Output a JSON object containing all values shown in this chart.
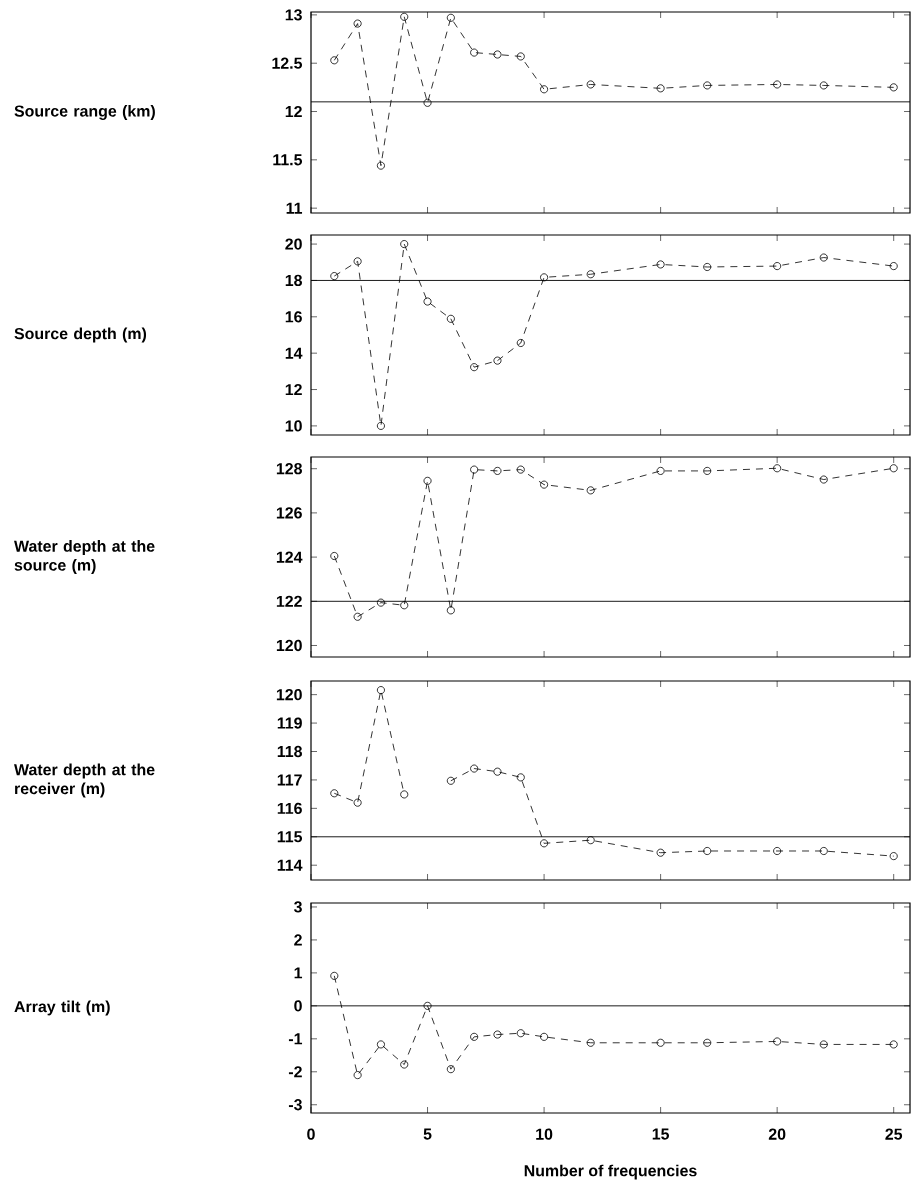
{
  "chart_data": [
    {
      "type": "line",
      "ylabel": "Source range (km)",
      "x": [
        1,
        2,
        3,
        4,
        5,
        6,
        7,
        8,
        9,
        10,
        12,
        15,
        17,
        20,
        22,
        25
      ],
      "series": [
        {
          "color": "#000000",
          "values": [
            12.53,
            12.91,
            11.44,
            12.98,
            12.09,
            12.97,
            12.61,
            12.59,
            12.57,
            12.23,
            12.28,
            12.24,
            12.27,
            12.28,
            12.27,
            12.25
          ]
        }
      ],
      "xlim": [
        0,
        25.7
      ],
      "xticks": [
        0,
        5,
        10,
        15,
        20,
        25
      ],
      "ylim": [
        10.95,
        13.03
      ],
      "yticks": [
        11,
        11.5,
        12,
        12.5,
        13
      ],
      "ref_lines": [
        {
          "axis": "y",
          "value": 12.1,
          "color": "#000000",
          "line_style": "solid"
        }
      ],
      "marker": "circle",
      "line_style": "dashed",
      "tick_labels": "y"
    },
    {
      "type": "line",
      "ylabel": "Source depth (m)",
      "x": [
        1,
        2,
        3,
        4,
        5,
        6,
        7,
        8,
        9,
        10,
        12,
        15,
        17,
        20,
        22,
        25
      ],
      "series": [
        {
          "color": "#000000",
          "values": [
            18.24,
            19.05,
            10,
            20,
            16.84,
            15.89,
            13.23,
            13.59,
            14.56,
            18.17,
            18.34,
            18.88,
            18.74,
            18.79,
            19.26,
            18.79
          ]
        }
      ],
      "xlim": [
        0,
        25.7
      ],
      "xticks": [
        0,
        5,
        10,
        15,
        20,
        25
      ],
      "ylim": [
        9.5,
        20.5
      ],
      "yticks": [
        10,
        12,
        14,
        16,
        18,
        20
      ],
      "ref_lines": [
        {
          "axis": "y",
          "value": 18,
          "color": "#000000",
          "line_style": "solid"
        }
      ],
      "marker": "circle",
      "line_style": "dashed",
      "tick_labels": "y"
    },
    {
      "type": "line",
      "ylabel": "Water depth at the source (m)",
      "x": [
        1,
        2,
        3,
        4,
        5,
        6,
        7,
        8,
        9,
        10,
        12,
        15,
        17,
        20,
        22,
        25
      ],
      "series": [
        {
          "color": "#000000",
          "values": [
            124.05,
            121.3,
            121.94,
            121.82,
            127.45,
            121.59,
            127.96,
            127.9,
            127.96,
            127.28,
            127.02,
            127.9,
            127.9,
            128.02,
            127.51,
            128.02
          ]
        }
      ],
      "xlim": [
        0,
        25.7
      ],
      "xticks": [
        0,
        5,
        10,
        15,
        20,
        25
      ],
      "ylim": [
        119.48,
        128.53
      ],
      "yticks": [
        120,
        122,
        124,
        126,
        128
      ],
      "ref_lines": [
        {
          "axis": "y",
          "value": 122,
          "color": "#000000",
          "line_style": "solid"
        }
      ],
      "marker": "circle",
      "line_style": "dashed",
      "tick_labels": "y"
    },
    {
      "type": "line",
      "ylabel": "Water depth at the receiver (m)",
      "x": [
        1,
        2,
        3,
        4,
        5,
        6,
        7,
        8,
        9,
        10,
        12,
        15,
        17,
        20,
        22,
        25
      ],
      "series": [
        {
          "color": "#000000",
          "values": [
            116.53,
            116.2,
            120.16,
            116.49,
            null,
            116.97,
            117.4,
            117.29,
            117.09,
            114.77,
            114.88,
            114.44,
            114.5,
            114.5,
            114.5,
            114.32
          ]
        }
      ],
      "xlim": [
        0,
        25.7
      ],
      "xticks": [
        0,
        5,
        10,
        15,
        20,
        25
      ],
      "ylim": [
        113.48,
        120.48
      ],
      "yticks": [
        114,
        115,
        116,
        117,
        118,
        119,
        120
      ],
      "ref_lines": [
        {
          "axis": "y",
          "value": 115,
          "color": "#000000",
          "line_style": "solid"
        }
      ],
      "marker": "circle",
      "line_style": "dashed",
      "tick_labels": "y"
    },
    {
      "type": "line",
      "ylabel": "Array tilt (m)",
      "xlabel": "Number of frequencies",
      "x": [
        1,
        2,
        3,
        4,
        5,
        6,
        7,
        8,
        9,
        10,
        12,
        15,
        17,
        20,
        22,
        25
      ],
      "series": [
        {
          "color": "#000000",
          "values": [
            0.91,
            -2.1,
            -1.17,
            -1.78,
            0,
            -1.92,
            -0.94,
            -0.87,
            -0.83,
            -0.94,
            -1.12,
            -1.12,
            -1.12,
            -1.08,
            -1.17,
            -1.17
          ]
        }
      ],
      "xlim": [
        0,
        25.7
      ],
      "xticks": [
        0,
        5,
        10,
        15,
        20,
        25
      ],
      "ylim": [
        -3.25,
        3.12
      ],
      "yticks": [
        -3,
        -2,
        -1,
        0,
        1,
        2,
        3
      ],
      "ref_lines": [
        {
          "axis": "y",
          "value": 0,
          "color": "#000000",
          "line_style": "solid"
        }
      ],
      "marker": "circle",
      "line_style": "dashed"
    }
  ]
}
